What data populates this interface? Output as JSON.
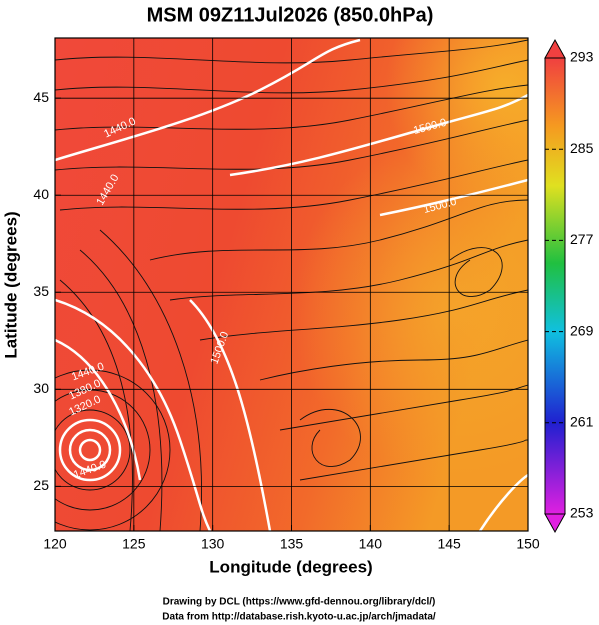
{
  "title": "MSM 09Z11Jul2026 (850.0hPa)",
  "x_axis": {
    "label": "Longitude (degrees)",
    "lim": [
      120,
      150
    ],
    "ticks": [
      120,
      125,
      130,
      135,
      140,
      145,
      150
    ]
  },
  "y_axis": {
    "label": "Latitude  (degrees)",
    "lim": [
      22.7,
      48.1
    ],
    "ticks": [
      25,
      30,
      35,
      40,
      45
    ]
  },
  "colorbar": {
    "lim": [
      253,
      293
    ],
    "ticks": [
      253,
      261,
      269,
      277,
      285,
      293
    ]
  },
  "contour_labels": [
    "1440.0",
    "1500.0",
    "1500.0",
    "1440.0",
    "1440.0",
    "1380.0",
    "1320.0",
    "1500.0",
    "1440.0"
  ],
  "footer": [
    "Drawing by DCL (https://www.gfd-dennou.org/library/dcl/)",
    "Data from http://database.rish.kyoto-u.ac.jp/arch/jmadata/"
  ]
}
